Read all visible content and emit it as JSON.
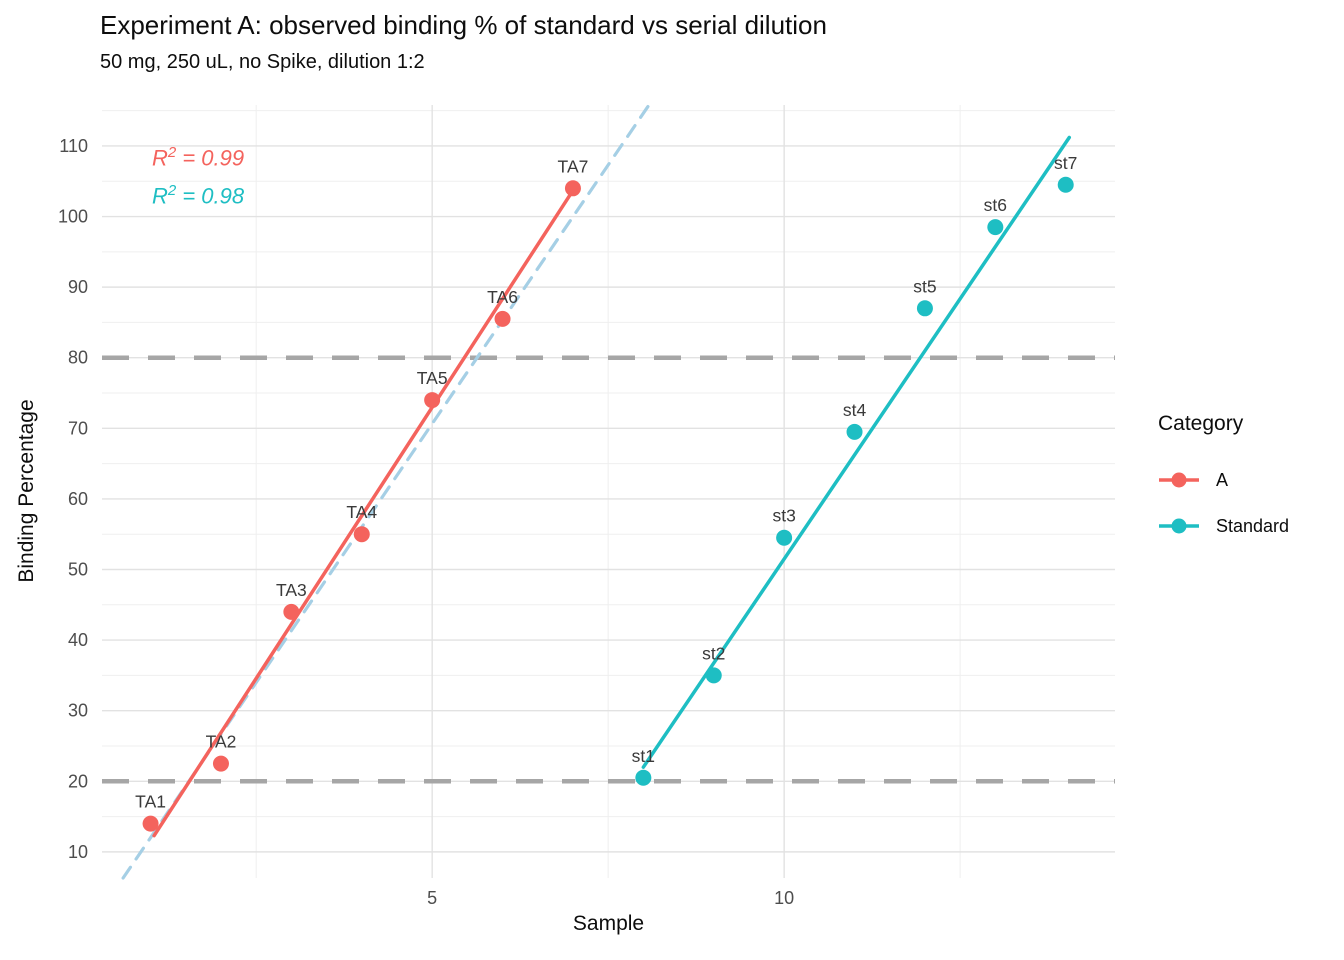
{
  "chart_data": {
    "type": "scatter",
    "title": "Experiment A: observed binding % of standard vs serial dilution",
    "subtitle": "50 mg, 250 uL, no Spike, dilution 1:2",
    "xlabel": "Sample",
    "ylabel": "Binding Percentage",
    "xlim": [
      0.31,
      14.7
    ],
    "ylim": [
      6.3,
      115.8
    ],
    "grid": {
      "x_major": [
        5,
        10
      ],
      "x_minor": [
        2.5,
        7.5,
        12.5
      ],
      "y_major": [
        10,
        20,
        30,
        40,
        50,
        60,
        70,
        80,
        90,
        100,
        110
      ],
      "y_minor": [
        15,
        25,
        35,
        45,
        55,
        65,
        75,
        85,
        95,
        105,
        115
      ]
    },
    "x_ticks": [
      {
        "value": 5,
        "label": "5"
      },
      {
        "value": 10,
        "label": "10"
      }
    ],
    "y_ticks": [
      {
        "value": 10,
        "label": "10"
      },
      {
        "value": 20,
        "label": "20"
      },
      {
        "value": 30,
        "label": "30"
      },
      {
        "value": 40,
        "label": "40"
      },
      {
        "value": 50,
        "label": "50"
      },
      {
        "value": 60,
        "label": "60"
      },
      {
        "value": 70,
        "label": "70"
      },
      {
        "value": 80,
        "label": "80"
      },
      {
        "value": 90,
        "label": "90"
      },
      {
        "value": 100,
        "label": "100"
      },
      {
        "value": 110,
        "label": "110"
      }
    ],
    "series": [
      {
        "name": "A",
        "color": "#F4635D",
        "points": [
          {
            "x": 1,
            "y": 14,
            "label": "TA1"
          },
          {
            "x": 2,
            "y": 22.5,
            "label": "TA2"
          },
          {
            "x": 3,
            "y": 44,
            "label": "TA3"
          },
          {
            "x": 4,
            "y": 55,
            "label": "TA4"
          },
          {
            "x": 5,
            "y": 74,
            "label": "TA5"
          },
          {
            "x": 6,
            "y": 85.5,
            "label": "TA6"
          },
          {
            "x": 7,
            "y": 104,
            "label": "TA7"
          }
        ]
      },
      {
        "name": "Standard",
        "color": "#1EBEC3",
        "points": [
          {
            "x": 8,
            "y": 20.5,
            "label": "st1"
          },
          {
            "x": 9,
            "y": 35,
            "label": "st2"
          },
          {
            "x": 10,
            "y": 54.5,
            "label": "st3"
          },
          {
            "x": 11,
            "y": 69.5,
            "label": "st4"
          },
          {
            "x": 12,
            "y": 87,
            "label": "st5"
          },
          {
            "x": 13,
            "y": 98.5,
            "label": "st6"
          },
          {
            "x": 14,
            "y": 104.5,
            "label": "st7"
          }
        ]
      }
    ],
    "fit_lines": [
      {
        "series": "A",
        "color": "#F4635D",
        "x1": 1.05,
        "y1": 12.3,
        "x2": 7.0,
        "y2": 103.7
      },
      {
        "series": "Standard",
        "color": "#1EBEC3",
        "x1": 8.0,
        "y1": 22.0,
        "x2": 14.05,
        "y2": 111.2
      }
    ],
    "reference_line": {
      "style": "dashed",
      "color": "#A5CFE5",
      "x1": 0.61,
      "y1": 6.3,
      "x2": 8.08,
      "y2": 115.8
    },
    "hlines": [
      {
        "y": 20,
        "style": "dashed",
        "color": "#A6A6A6"
      },
      {
        "y": 80,
        "style": "dashed",
        "color": "#A6A6A6"
      }
    ],
    "annotations": [
      {
        "series": "A",
        "symbol": "R",
        "exponent": "2",
        "text": " = 0.99",
        "r2": 0.99,
        "color": "#F4635D"
      },
      {
        "series": "Standard",
        "symbol": "R",
        "exponent": "2",
        "text": " = 0.98",
        "r2": 0.98,
        "color": "#1EBEC3"
      }
    ],
    "legend": {
      "title": "Category",
      "position": "right",
      "entries": [
        {
          "label": "A",
          "color": "#F4635D"
        },
        {
          "label": "Standard",
          "color": "#1EBEC3"
        }
      ]
    },
    "colors": {
      "grid_major": "#E2E2E2",
      "grid_minor": "#EFEFEF",
      "axis_text": "#4D4D4D",
      "point_label": "#3A3A3A"
    }
  }
}
